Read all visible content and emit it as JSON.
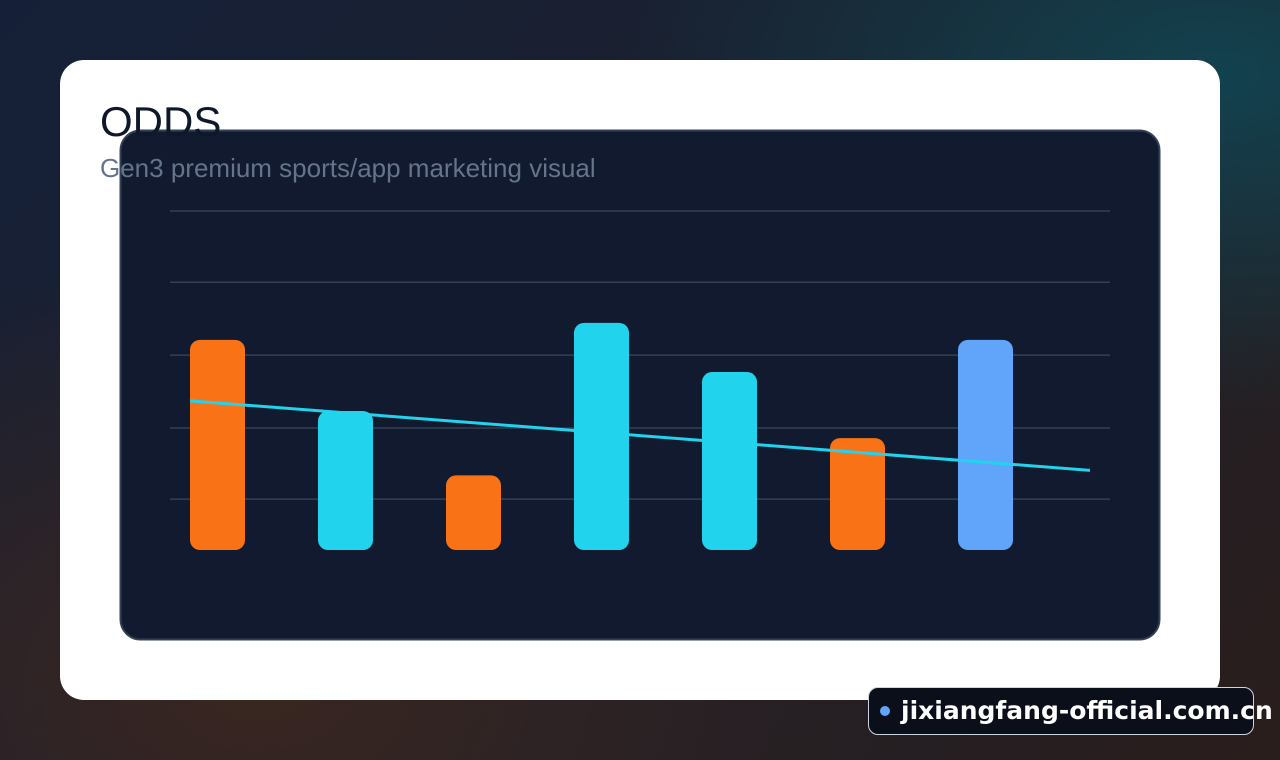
{
  "header": {
    "title": "ODDS",
    "subtitle": "Gen3 premium sports/app marketing visual"
  },
  "chart_data": {
    "type": "bar",
    "categories": [
      null,
      null,
      null,
      null,
      null,
      null,
      null
    ],
    "values": [
      62,
      41,
      22,
      67,
      52.5,
      33,
      62
    ],
    "colors": [
      "#f97316",
      "#22d3ee",
      "#f97316",
      "#22d3ee",
      "#22d3ee",
      "#f97316",
      "#60a5fa"
    ],
    "trend": {
      "color": "#22d3ee",
      "values": [
        44,
        23.5
      ]
    },
    "ylim": [
      0,
      100
    ],
    "yticks": [
      15,
      36,
      57.5,
      79,
      100
    ],
    "grid": true
  },
  "watermark": {
    "text": "jixiangfang-official.com.cn"
  }
}
